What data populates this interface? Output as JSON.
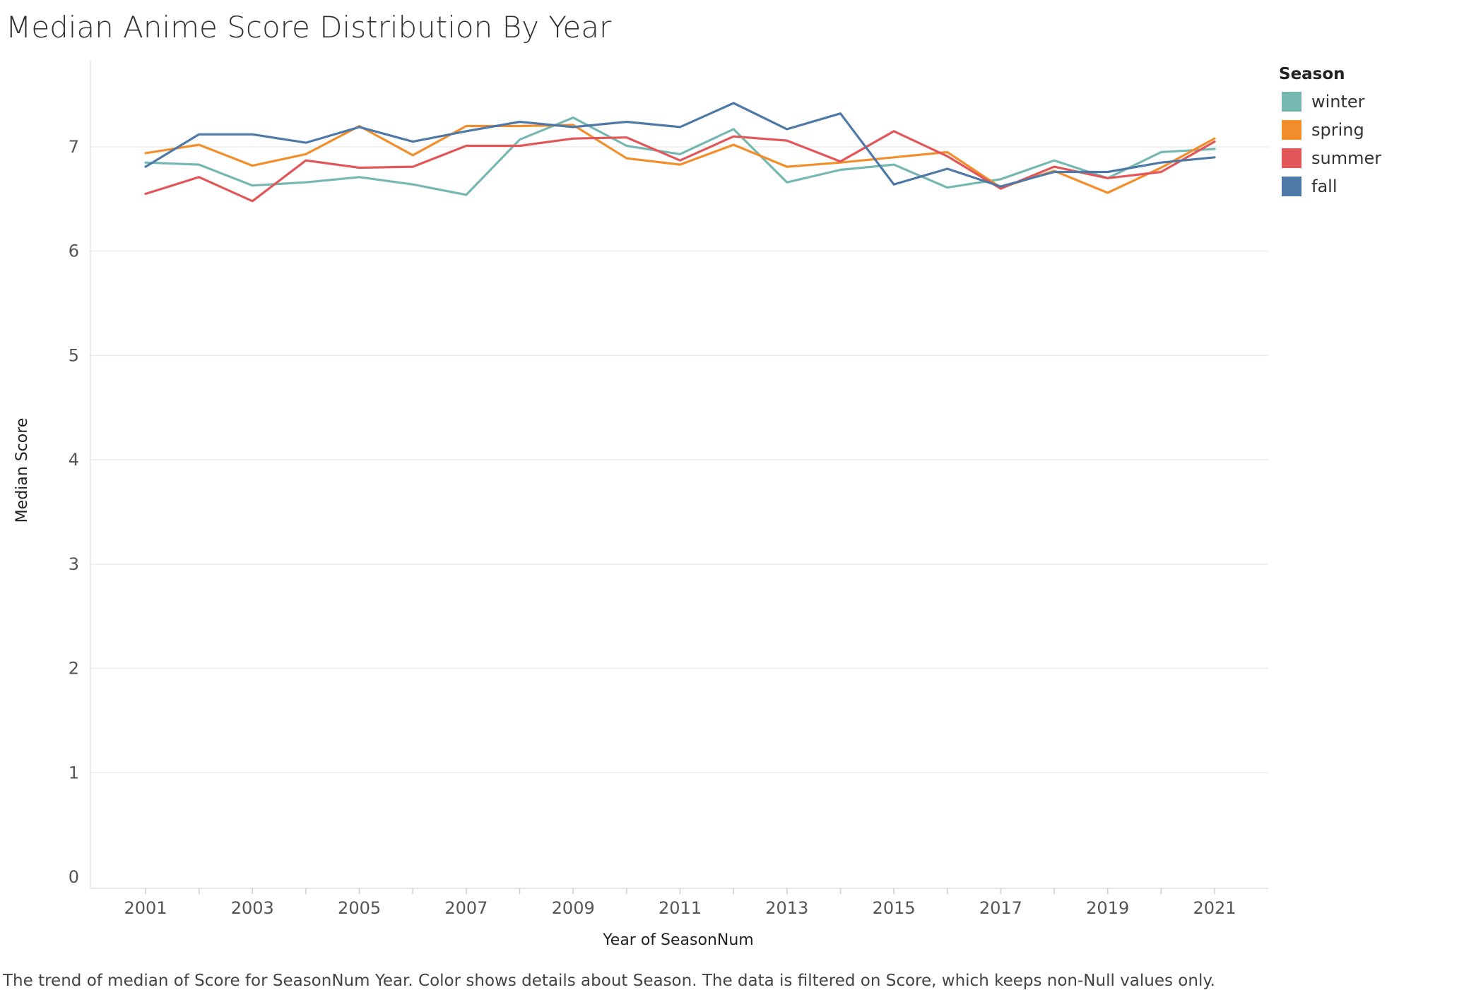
{
  "chart_data": {
    "type": "line",
    "title": "Median Anime Score Distribution By Year",
    "xlabel": "Year of SeasonNum",
    "ylabel": "Median Score",
    "x": [
      2001,
      2002,
      2003,
      2004,
      2005,
      2006,
      2007,
      2008,
      2009,
      2010,
      2011,
      2012,
      2013,
      2014,
      2015,
      2016,
      2017,
      2018,
      2019,
      2020,
      2021
    ],
    "x_ticks": [
      "2001",
      "2003",
      "2005",
      "2007",
      "2009",
      "2011",
      "2013",
      "2015",
      "2017",
      "2019",
      "2021"
    ],
    "y_ticks": [
      "0",
      "1",
      "2",
      "3",
      "4",
      "5",
      "6",
      "7"
    ],
    "xlim": [
      2000,
      2022
    ],
    "ylim": [
      0,
      7.7
    ],
    "grid": "horizontal",
    "legend_title": "Season",
    "legend_position": "right",
    "series": [
      {
        "name": "winter",
        "color": "#76b7b2",
        "values": [
          6.85,
          6.83,
          6.63,
          6.66,
          6.71,
          6.64,
          6.54,
          7.07,
          7.28,
          7.01,
          6.93,
          7.17,
          6.66,
          6.78,
          6.83,
          6.61,
          6.69,
          6.87,
          6.7,
          6.95,
          6.98
        ]
      },
      {
        "name": "spring",
        "color": "#f28e2b",
        "values": [
          6.94,
          7.02,
          6.82,
          6.93,
          7.2,
          6.92,
          7.2,
          7.2,
          7.21,
          6.89,
          6.83,
          7.02,
          6.81,
          6.85,
          6.9,
          6.95,
          6.61,
          6.77,
          6.56,
          6.8,
          7.08
        ]
      },
      {
        "name": "summer",
        "color": "#e15759",
        "values": [
          6.55,
          6.71,
          6.48,
          6.87,
          6.8,
          6.81,
          7.01,
          7.01,
          7.08,
          7.09,
          6.87,
          7.1,
          7.06,
          6.86,
          7.15,
          6.91,
          6.6,
          6.81,
          6.7,
          6.76,
          7.05
        ]
      },
      {
        "name": "fall",
        "color": "#4e79a7",
        "values": [
          6.81,
          7.12,
          7.12,
          7.04,
          7.19,
          7.05,
          7.15,
          7.24,
          7.19,
          7.24,
          7.19,
          7.42,
          7.17,
          7.32,
          6.64,
          6.79,
          6.62,
          6.76,
          6.76,
          6.85,
          6.9
        ]
      }
    ]
  },
  "caption": "The trend of median of Score for SeasonNum Year.  Color shows details about Season. The data is filtered on Score, which keeps non-Null values only."
}
